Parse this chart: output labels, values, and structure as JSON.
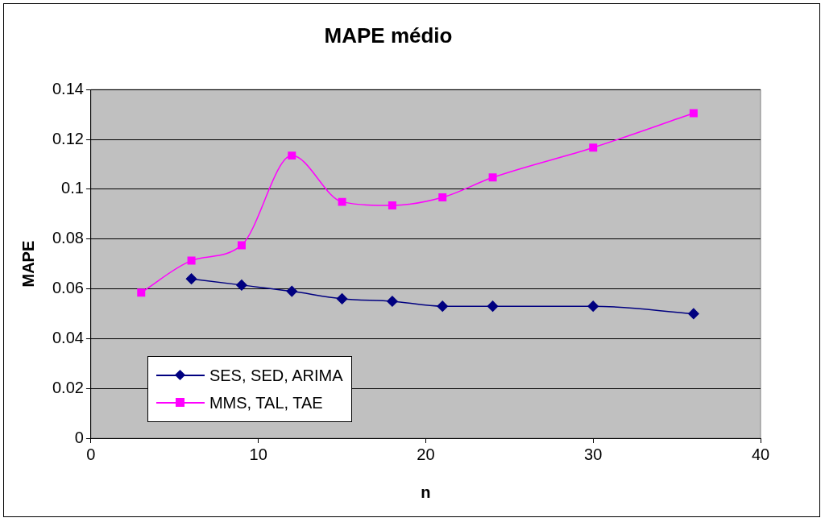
{
  "chart_data": {
    "type": "line",
    "title": "MAPE médio",
    "xlabel": "n",
    "ylabel": "MAPE",
    "xlim": [
      0,
      40
    ],
    "xticks": [
      0,
      10,
      20,
      30,
      40
    ],
    "ylim": [
      0,
      0.14
    ],
    "yticks": [
      0,
      0.02,
      0.04,
      0.06,
      0.08,
      0.1,
      0.12,
      0.14
    ],
    "grid": "y",
    "legend": "bottom left",
    "line_style": "solid",
    "series": [
      {
        "name": "SES, SED, ARIMA",
        "color": "#000080",
        "marker": "diamond",
        "x": [
          6,
          9,
          12,
          15,
          18,
          21,
          24,
          30,
          36
        ],
        "values": [
          0.064,
          0.0615,
          0.059,
          0.056,
          0.055,
          0.053,
          0.053,
          0.053,
          0.05
        ]
      },
      {
        "name": "MMS, TAL, TAE",
        "color": "#ff00ff",
        "marker": "square",
        "x": [
          3,
          6,
          9,
          12,
          15,
          18,
          21,
          24,
          30,
          36
        ],
        "values": [
          0.0585,
          0.0713,
          0.0775,
          0.1135,
          0.0949,
          0.0935,
          0.0967,
          0.1047,
          0.1167,
          0.1305
        ]
      }
    ]
  }
}
